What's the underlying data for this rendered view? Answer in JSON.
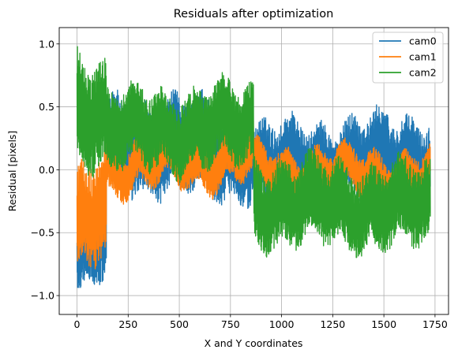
{
  "chart_data": {
    "type": "line",
    "title": "Residuals after optimization",
    "xlabel": "X and Y coordinates",
    "ylabel": "Residual [pixels]",
    "xlim": [
      -87,
      1816
    ],
    "ylim": [
      -1.15,
      1.13
    ],
    "xticks": [
      0,
      250,
      500,
      750,
      1000,
      1250,
      1500,
      1750
    ],
    "xtick_labels": [
      "0",
      "250",
      "500",
      "750",
      "1000",
      "1250",
      "1500",
      "1750"
    ],
    "yticks": [
      -1.0,
      -0.5,
      0.0,
      0.5,
      1.0
    ],
    "ytick_labels": [
      "−1.0",
      "−0.5",
      "0.0",
      "0.5",
      "1.0"
    ],
    "grid": true,
    "legend_position": "top-right",
    "n_points": 1728,
    "series": [
      {
        "name": "cam0",
        "color": "#1f77b4",
        "segments": [
          {
            "x_start": 0,
            "x_end": 144,
            "center": -0.62,
            "amplitude": 0.33,
            "env_start": -0.7,
            "env_end": -0.55
          },
          {
            "x_start": 144,
            "x_end": 864,
            "center": 0.18,
            "amplitude": 0.36,
            "env_start": 0.2,
            "env_end": 0.15
          },
          {
            "x_start": 864,
            "x_end": 1728,
            "center": 0.05,
            "amplitude": 0.33,
            "env_start": 0.0,
            "env_end": 0.1
          }
        ]
      },
      {
        "name": "cam1",
        "color": "#ff7f0e",
        "segments": [
          {
            "x_start": 0,
            "x_end": 144,
            "center": -0.35,
            "amplitude": 0.42,
            "env_start": -0.5,
            "env_end": -0.2
          },
          {
            "x_start": 144,
            "x_end": 864,
            "center": 0.06,
            "amplitude": 0.18,
            "env_start": 0.02,
            "env_end": 0.1
          },
          {
            "x_start": 864,
            "x_end": 1728,
            "center": -0.02,
            "amplitude": 0.16,
            "env_start": 0.0,
            "env_end": -0.04
          }
        ]
      },
      {
        "name": "cam2",
        "color": "#2ca02c",
        "segments": [
          {
            "x_start": 0,
            "x_end": 144,
            "center": 0.48,
            "amplitude": 0.42,
            "env_start": 0.55,
            "env_end": 0.4
          },
          {
            "x_start": 144,
            "x_end": 864,
            "center": 0.33,
            "amplitude": 0.3,
            "env_start": 0.3,
            "env_end": 0.35
          },
          {
            "x_start": 864,
            "x_end": 1728,
            "center": -0.27,
            "amplitude": 0.32,
            "env_start": -0.25,
            "env_end": -0.3
          }
        ]
      }
    ]
  }
}
